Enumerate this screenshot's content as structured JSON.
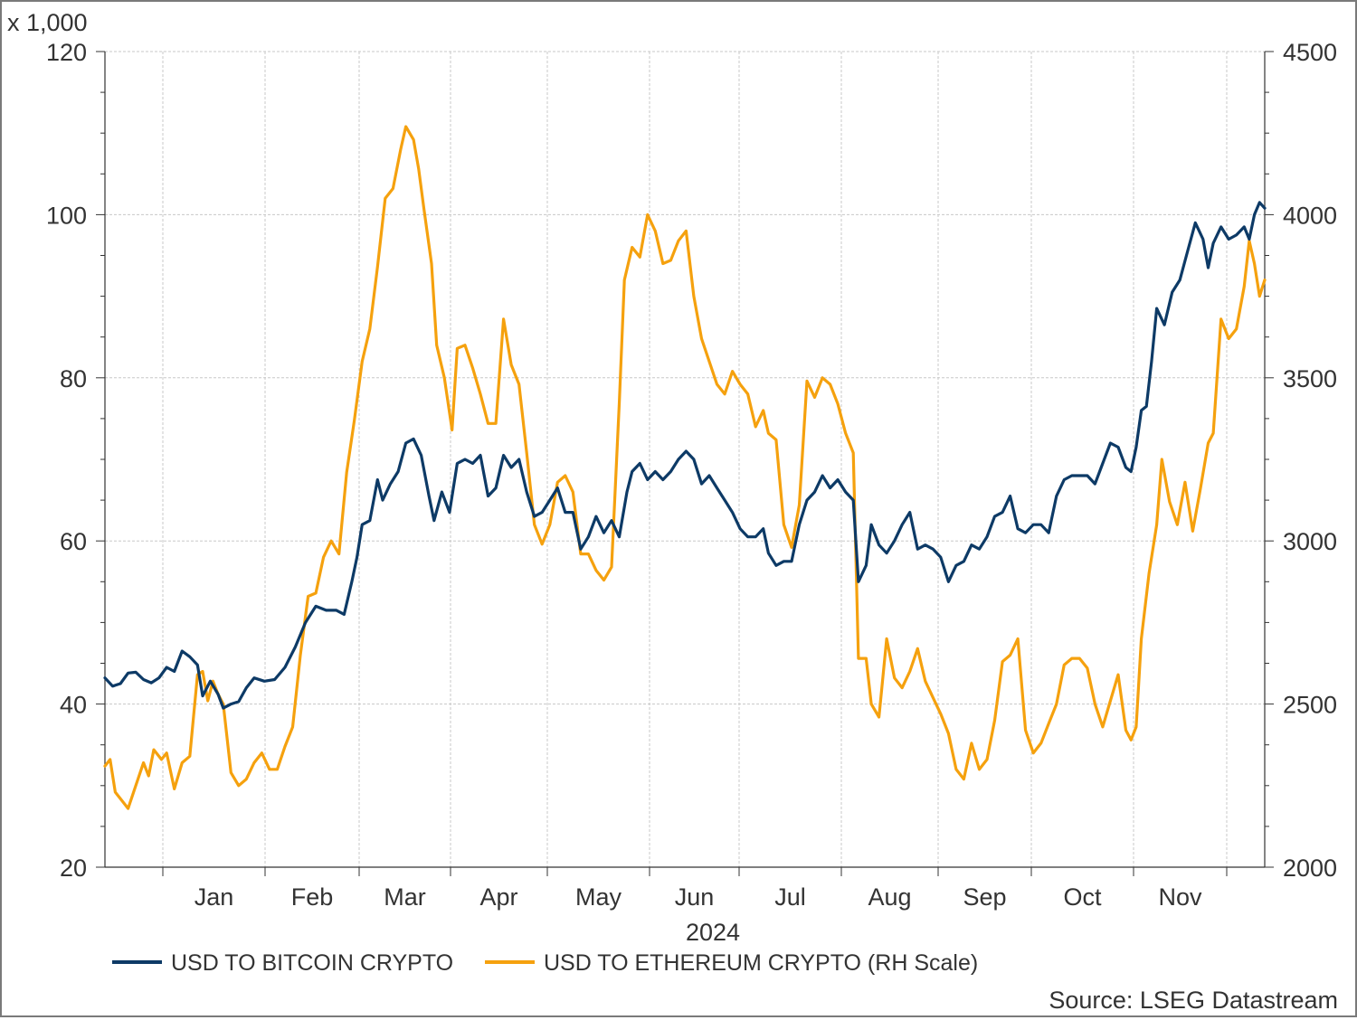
{
  "chart_data": {
    "type": "line",
    "left_axis": {
      "multiplier_label": "x 1,000",
      "range": [
        20,
        120
      ],
      "ticks": [
        "20",
        "40",
        "60",
        "80",
        "100",
        "120"
      ]
    },
    "right_axis": {
      "range": [
        2000,
        4500
      ],
      "ticks": [
        "2000",
        "2500",
        "3000",
        "3500",
        "4000",
        "4500"
      ]
    },
    "x_axis": {
      "range_days": [
        0,
        335
      ],
      "month_labels": [
        "Jan",
        "Feb",
        "Mar",
        "Apr",
        "May",
        "Jun",
        "Jul",
        "Aug",
        "Sep",
        "Oct",
        "Nov"
      ],
      "year_label": "2024"
    },
    "grid": true,
    "legend_position": "bottom-left",
    "series": [
      {
        "name": "USD TO BITCOIN CRYPTO",
        "axis": "left",
        "color": "#0d3a66",
        "points": [
          [
            0,
            43.2
          ],
          [
            3,
            42.2
          ],
          [
            6,
            42.5
          ],
          [
            9,
            43.8
          ],
          [
            12,
            43.9
          ],
          [
            15,
            43.0
          ],
          [
            18,
            42.6
          ],
          [
            21,
            43.2
          ],
          [
            24,
            44.5
          ],
          [
            27,
            44.0
          ],
          [
            30,
            46.5
          ],
          [
            33,
            45.8
          ],
          [
            36,
            44.8
          ],
          [
            38,
            41.0
          ],
          [
            41,
            42.8
          ],
          [
            44,
            41.2
          ],
          [
            46,
            39.5
          ],
          [
            49,
            40.0
          ],
          [
            52,
            40.3
          ],
          [
            55,
            42.0
          ],
          [
            58,
            43.2
          ],
          [
            62,
            42.8
          ],
          [
            66,
            43.0
          ],
          [
            70,
            44.5
          ],
          [
            74,
            47.0
          ],
          [
            78,
            50.0
          ],
          [
            82,
            52.0
          ],
          [
            86,
            51.5
          ],
          [
            90,
            51.5
          ],
          [
            93,
            51.0
          ],
          [
            96,
            55.0
          ],
          [
            98,
            58.0
          ],
          [
            100,
            62.0
          ],
          [
            103,
            62.5
          ],
          [
            106,
            67.5
          ],
          [
            108,
            65.0
          ],
          [
            111,
            67.0
          ],
          [
            114,
            68.5
          ],
          [
            117,
            72.0
          ],
          [
            120,
            72.5
          ],
          [
            123,
            70.5
          ],
          [
            126,
            65.5
          ],
          [
            128,
            62.5
          ],
          [
            131,
            66.0
          ],
          [
            134,
            63.5
          ],
          [
            137,
            69.5
          ],
          [
            140,
            70.0
          ],
          [
            143,
            69.5
          ],
          [
            146,
            70.5
          ],
          [
            149,
            65.5
          ],
          [
            152,
            66.5
          ],
          [
            155,
            70.5
          ],
          [
            158,
            69.0
          ],
          [
            161,
            70.0
          ],
          [
            164,
            66.0
          ],
          [
            167,
            63.0
          ],
          [
            170,
            63.5
          ],
          [
            173,
            65.0
          ],
          [
            176,
            66.5
          ],
          [
            179,
            63.5
          ],
          [
            182,
            63.5
          ],
          [
            185,
            59.0
          ],
          [
            188,
            60.5
          ],
          [
            191,
            63.0
          ],
          [
            194,
            61.0
          ],
          [
            197,
            62.5
          ],
          [
            200,
            60.5
          ],
          [
            203,
            66.0
          ],
          [
            205,
            68.5
          ],
          [
            208,
            69.5
          ],
          [
            211,
            67.5
          ],
          [
            214,
            68.5
          ],
          [
            217,
            67.5
          ],
          [
            220,
            68.5
          ],
          [
            223,
            70.0
          ],
          [
            226,
            71.0
          ],
          [
            229,
            70.0
          ],
          [
            232,
            67.0
          ],
          [
            235,
            68.0
          ],
          [
            238,
            66.5
          ],
          [
            241,
            65.0
          ],
          [
            244,
            63.5
          ],
          [
            247,
            61.5
          ],
          [
            250,
            60.5
          ],
          [
            253,
            60.5
          ],
          [
            256,
            61.5
          ],
          [
            258,
            58.5
          ],
          [
            261,
            57.0
          ],
          [
            264,
            57.5
          ],
          [
            267,
            57.5
          ],
          [
            270,
            62.0
          ],
          [
            273,
            65.0
          ],
          [
            276,
            66.0
          ],
          [
            279,
            68.0
          ],
          [
            282,
            66.5
          ],
          [
            285,
            67.5
          ],
          [
            288,
            66.0
          ],
          [
            291,
            65.0
          ],
          [
            293,
            55.0
          ],
          [
            296,
            57.0
          ],
          [
            298,
            62.0
          ],
          [
            301,
            59.5
          ],
          [
            304,
            58.5
          ],
          [
            307,
            60.0
          ],
          [
            310,
            62.0
          ],
          [
            313,
            63.5
          ],
          [
            316,
            59.0
          ],
          [
            319,
            59.5
          ],
          [
            322,
            59.0
          ],
          [
            325,
            58.0
          ],
          [
            328,
            55.0
          ],
          [
            331,
            57.0
          ],
          [
            334,
            57.5
          ],
          [
            337,
            59.5
          ],
          [
            340,
            59.0
          ],
          [
            343,
            60.5
          ],
          [
            346,
            63.0
          ],
          [
            349,
            63.5
          ],
          [
            352,
            65.5
          ],
          [
            355,
            61.5
          ],
          [
            358,
            61.0
          ],
          [
            361,
            62.0
          ],
          [
            364,
            62.0
          ],
          [
            367,
            61.0
          ],
          [
            370,
            65.5
          ],
          [
            373,
            67.5
          ],
          [
            376,
            68.0
          ],
          [
            379,
            68.0
          ],
          [
            382,
            68.0
          ],
          [
            385,
            67.0
          ],
          [
            388,
            69.5
          ],
          [
            391,
            72.0
          ],
          [
            394,
            71.5
          ],
          [
            397,
            69.0
          ],
          [
            399,
            68.5
          ],
          [
            401,
            71.5
          ],
          [
            403,
            76.0
          ],
          [
            405,
            76.5
          ],
          [
            407,
            82.0
          ],
          [
            409,
            88.5
          ],
          [
            412,
            86.5
          ],
          [
            415,
            90.5
          ],
          [
            418,
            92.0
          ],
          [
            421,
            95.5
          ],
          [
            424,
            99.0
          ],
          [
            427,
            97.0
          ],
          [
            429,
            93.5
          ],
          [
            431,
            96.5
          ],
          [
            434,
            98.5
          ],
          [
            437,
            97.0
          ],
          [
            440,
            97.5
          ],
          [
            443,
            98.5
          ],
          [
            445,
            97.0
          ],
          [
            447,
            100.0
          ],
          [
            449,
            101.5
          ],
          [
            451,
            100.8
          ]
        ]
      },
      {
        "name": "USD TO ETHEREUM CRYPTO (RH Scale)",
        "axis": "right",
        "color": "#f5a10e",
        "points": [
          [
            0,
            2310
          ],
          [
            2,
            2330
          ],
          [
            4,
            2230
          ],
          [
            6,
            2210
          ],
          [
            9,
            2180
          ],
          [
            12,
            2250
          ],
          [
            15,
            2320
          ],
          [
            17,
            2280
          ],
          [
            19,
            2360
          ],
          [
            22,
            2330
          ],
          [
            24,
            2350
          ],
          [
            27,
            2240
          ],
          [
            30,
            2320
          ],
          [
            33,
            2340
          ],
          [
            36,
            2590
          ],
          [
            38,
            2600
          ],
          [
            40,
            2510
          ],
          [
            42,
            2570
          ],
          [
            44,
            2530
          ],
          [
            46,
            2500
          ],
          [
            49,
            2290
          ],
          [
            52,
            2250
          ],
          [
            55,
            2270
          ],
          [
            58,
            2320
          ],
          [
            61,
            2350
          ],
          [
            64,
            2300
          ],
          [
            67,
            2300
          ],
          [
            70,
            2370
          ],
          [
            73,
            2430
          ],
          [
            76,
            2650
          ],
          [
            79,
            2830
          ],
          [
            82,
            2840
          ],
          [
            85,
            2950
          ],
          [
            88,
            3000
          ],
          [
            91,
            2960
          ],
          [
            94,
            3210
          ],
          [
            97,
            3370
          ],
          [
            100,
            3550
          ],
          [
            103,
            3650
          ],
          [
            106,
            3840
          ],
          [
            109,
            4050
          ],
          [
            112,
            4080
          ],
          [
            115,
            4200
          ],
          [
            117,
            4270
          ],
          [
            120,
            4230
          ],
          [
            122,
            4140
          ],
          [
            124,
            4020
          ],
          [
            127,
            3850
          ],
          [
            129,
            3600
          ],
          [
            132,
            3500
          ],
          [
            135,
            3340
          ],
          [
            137,
            3590
          ],
          [
            140,
            3600
          ],
          [
            143,
            3530
          ],
          [
            146,
            3450
          ],
          [
            149,
            3360
          ],
          [
            152,
            3360
          ],
          [
            155,
            3680
          ],
          [
            158,
            3540
          ],
          [
            161,
            3480
          ],
          [
            164,
            3270
          ],
          [
            167,
            3050
          ],
          [
            170,
            2990
          ],
          [
            173,
            3050
          ],
          [
            176,
            3180
          ],
          [
            179,
            3200
          ],
          [
            182,
            3150
          ],
          [
            185,
            2960
          ],
          [
            188,
            2960
          ],
          [
            191,
            2910
          ],
          [
            194,
            2880
          ],
          [
            197,
            2920
          ],
          [
            200,
            3420
          ],
          [
            202,
            3800
          ],
          [
            205,
            3900
          ],
          [
            208,
            3870
          ],
          [
            211,
            4000
          ],
          [
            214,
            3950
          ],
          [
            217,
            3850
          ],
          [
            220,
            3860
          ],
          [
            223,
            3920
          ],
          [
            226,
            3950
          ],
          [
            229,
            3750
          ],
          [
            232,
            3620
          ],
          [
            235,
            3550
          ],
          [
            238,
            3480
          ],
          [
            241,
            3450
          ],
          [
            244,
            3520
          ],
          [
            247,
            3480
          ],
          [
            250,
            3450
          ],
          [
            253,
            3350
          ],
          [
            256,
            3400
          ],
          [
            258,
            3330
          ],
          [
            261,
            3310
          ],
          [
            264,
            3050
          ],
          [
            267,
            2980
          ],
          [
            270,
            3110
          ],
          [
            273,
            3490
          ],
          [
            276,
            3440
          ],
          [
            279,
            3500
          ],
          [
            282,
            3480
          ],
          [
            285,
            3420
          ],
          [
            288,
            3330
          ],
          [
            291,
            3270
          ],
          [
            293,
            2640
          ],
          [
            296,
            2640
          ],
          [
            298,
            2500
          ],
          [
            301,
            2460
          ],
          [
            304,
            2700
          ],
          [
            307,
            2580
          ],
          [
            310,
            2550
          ],
          [
            313,
            2600
          ],
          [
            316,
            2670
          ],
          [
            319,
            2570
          ],
          [
            322,
            2520
          ],
          [
            325,
            2470
          ],
          [
            328,
            2410
          ],
          [
            331,
            2300
          ],
          [
            334,
            2270
          ],
          [
            337,
            2380
          ],
          [
            340,
            2300
          ],
          [
            343,
            2330
          ],
          [
            346,
            2450
          ],
          [
            349,
            2630
          ],
          [
            352,
            2650
          ],
          [
            355,
            2700
          ],
          [
            358,
            2420
          ],
          [
            361,
            2350
          ],
          [
            364,
            2380
          ],
          [
            367,
            2440
          ],
          [
            370,
            2500
          ],
          [
            373,
            2620
          ],
          [
            376,
            2640
          ],
          [
            379,
            2640
          ],
          [
            382,
            2610
          ],
          [
            385,
            2500
          ],
          [
            388,
            2430
          ],
          [
            391,
            2510
          ],
          [
            394,
            2590
          ],
          [
            397,
            2420
          ],
          [
            399,
            2390
          ],
          [
            401,
            2430
          ],
          [
            403,
            2700
          ],
          [
            406,
            2900
          ],
          [
            409,
            3050
          ],
          [
            411,
            3250
          ],
          [
            414,
            3120
          ],
          [
            417,
            3050
          ],
          [
            420,
            3180
          ],
          [
            423,
            3030
          ],
          [
            426,
            3160
          ],
          [
            429,
            3300
          ],
          [
            431,
            3330
          ],
          [
            434,
            3680
          ],
          [
            437,
            3620
          ],
          [
            440,
            3650
          ],
          [
            443,
            3780
          ],
          [
            445,
            3920
          ],
          [
            447,
            3850
          ],
          [
            449,
            3750
          ],
          [
            451,
            3800
          ]
        ]
      }
    ],
    "source": "Source: LSEG Datastream"
  }
}
